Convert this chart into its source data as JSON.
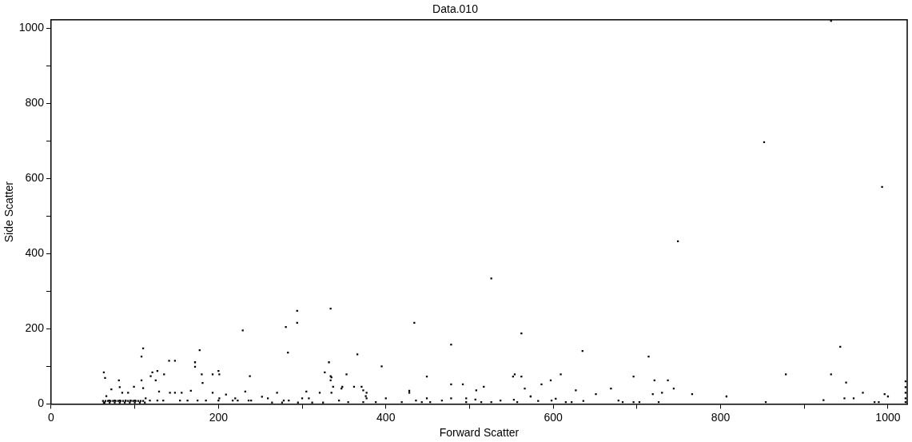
{
  "chart_data": {
    "type": "scatter",
    "title": "Data.010",
    "xlabel": "Forward Scatter",
    "ylabel": "Side Scatter",
    "xlim": [
      0,
      1023
    ],
    "ylim": [
      0,
      1023
    ],
    "xticks": [
      0,
      {
        "value": 100,
        "label": null
      },
      200,
      {
        "value": 300,
        "label": null
      },
      400,
      {
        "value": 500,
        "label": null
      },
      600,
      {
        "value": 700,
        "label": null
      },
      800,
      {
        "value": 900,
        "label": null
      },
      1000
    ],
    "yticks": [
      0,
      {
        "value": 100,
        "label": null
      },
      200,
      {
        "value": 300,
        "label": null
      },
      400,
      {
        "value": 500,
        "label": null
      },
      600,
      {
        "value": 700,
        "label": null
      },
      800,
      {
        "value": 900,
        "label": null
      },
      1000
    ],
    "grid": false,
    "legend": false,
    "marker": "square",
    "series": [
      {
        "color": "#000000",
        "x": [
          63,
          64.5,
          72,
          81,
          82,
          85,
          92,
          99,
          108,
          110,
          108,
          110,
          119,
          121,
          127,
          125,
          135,
          141,
          148,
          172,
          172,
          177.5,
          180,
          181,
          193,
          200,
          201,
          229,
          237.5,
          280.5,
          283,
          294,
          294,
          332,
          327,
          334,
          335,
          62,
          65,
          68,
          71,
          74,
          77,
          80,
          83,
          86,
          89,
          92,
          95,
          98,
          101,
          104,
          107,
          110,
          64,
          70,
          76,
          82,
          88,
          94,
          100,
          106,
          112,
          66,
          69.5,
          76,
          82,
          89,
          95,
          100,
          63,
          113,
          118,
          127,
          129,
          134,
          142,
          148,
          154,
          156,
          163,
          167,
          175,
          185,
          193,
          201,
          200,
          209,
          217,
          220,
          223,
          232,
          236,
          239,
          252,
          259,
          264,
          270,
          276,
          278,
          284,
          295,
          300,
          305,
          308,
          312,
          321,
          325,
          334,
          334,
          337,
          335,
          344,
          347,
          348,
          353,
          355,
          362,
          366,
          371,
          373,
          376,
          377,
          377,
          373,
          388,
          395,
          400,
          419,
          428,
          428,
          434,
          436,
          443,
          449,
          449,
          453,
          467,
          478,
          478,
          478,
          492,
          496,
          496,
          507,
          508,
          517,
          514,
          526,
          537,
          552,
          554,
          553,
          557,
          562,
          562,
          566,
          573,
          582,
          586,
          597,
          598,
          603,
          609,
          615,
          622,
          627,
          635,
          636,
          651,
          669,
          678,
          683,
          696,
          696,
          703,
          714,
          719,
          721,
          726,
          730,
          737,
          744,
          766,
          807,
          854,
          878,
          923,
          932,
          943,
          950,
          948,
          959,
          970,
          984,
          989,
          996,
          1000,
          1021,
          1021,
          1021,
          1021,
          1021,
          932,
          852,
          993,
          749,
          526
        ],
        "values": [
          84,
          69,
          39,
          63,
          45,
          30,
          30,
          46,
          126,
          148,
          63,
          42,
          74,
          84,
          88,
          63,
          79,
          115,
          115,
          111,
          99,
          143,
          79,
          56,
          79,
          88,
          79,
          196,
          74,
          205,
          137,
          248,
          216,
          111,
          84,
          254,
          71,
          8,
          8,
          8,
          8,
          8,
          8,
          8,
          8,
          8,
          8,
          8,
          8,
          8,
          8,
          8,
          8,
          8,
          4,
          4,
          4,
          4,
          4,
          4,
          4,
          4,
          4,
          21,
          9,
          9,
          9,
          9,
          9,
          9,
          4,
          15,
          9,
          9,
          33,
          9,
          30,
          30,
          9,
          30,
          9,
          35,
          9,
          9,
          30,
          15,
          9,
          25,
          9,
          15,
          9,
          33,
          9,
          9,
          19,
          15,
          4,
          30,
          4,
          9,
          9,
          4,
          15,
          33,
          15,
          4,
          30,
          4,
          74,
          63,
          46,
          30,
          9,
          41,
          46,
          79,
          5,
          46,
          132,
          46,
          36,
          21,
          30,
          15,
          5,
          5,
          100,
          15,
          5,
          35,
          30,
          216,
          9,
          5,
          73,
          15,
          5,
          9,
          158,
          52,
          15,
          52,
          15,
          5,
          12,
          36,
          46,
          5,
          5,
          9,
          73,
          79,
          11,
          5,
          188,
          73,
          41,
          20,
          8,
          52,
          63,
          9,
          14,
          79,
          5,
          5,
          36,
          141,
          8,
          26,
          41,
          9,
          5,
          73,
          5,
          5,
          126,
          26,
          63,
          5,
          30,
          63,
          41,
          26,
          20,
          5,
          79,
          10,
          79,
          152,
          57,
          15,
          15,
          30,
          5,
          5,
          26,
          20,
          60,
          45,
          30,
          15,
          5,
          1020,
          697,
          578,
          433,
          334
        ]
      }
    ]
  }
}
